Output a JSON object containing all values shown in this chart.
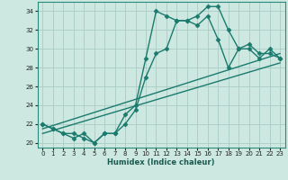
{
  "xlabel": "Humidex (Indice chaleur)",
  "background_color": "#cde8e0",
  "grid_color": "#aaccc4",
  "line_color": "#1a7a6e",
  "xlim": [
    -0.5,
    23.5
  ],
  "ylim": [
    19.5,
    35.0
  ],
  "yticks": [
    20,
    22,
    24,
    26,
    28,
    30,
    32,
    34
  ],
  "xticks": [
    0,
    1,
    2,
    3,
    4,
    5,
    6,
    7,
    8,
    9,
    10,
    11,
    12,
    13,
    14,
    15,
    16,
    17,
    18,
    19,
    20,
    21,
    22,
    23
  ],
  "line1_x": [
    0,
    1,
    2,
    3,
    4,
    5,
    6,
    7,
    8,
    9,
    10,
    11,
    12,
    13,
    14,
    15,
    16,
    17,
    18,
    19,
    20,
    21,
    22,
    23
  ],
  "line1_y": [
    22,
    21.5,
    21,
    21,
    20.5,
    20,
    21,
    21,
    22,
    23.5,
    27,
    29.5,
    30,
    33,
    33,
    32.5,
    33.5,
    31,
    28,
    30,
    30.5,
    29.5,
    29.5,
    29
  ],
  "line2_x": [
    0,
    1,
    2,
    3,
    4,
    5,
    6,
    7,
    8,
    9,
    10,
    11,
    12,
    13,
    14,
    15,
    16,
    17,
    18,
    19,
    20,
    21,
    22,
    23
  ],
  "line2_y": [
    22,
    21.5,
    21,
    20.5,
    21,
    20,
    21,
    21,
    23,
    24,
    29,
    34,
    33.5,
    33,
    33,
    33.5,
    34.5,
    34.5,
    32,
    30,
    30,
    29,
    30,
    29
  ],
  "line3_x": [
    0,
    23
  ],
  "line3_y": [
    21.5,
    29.5
  ],
  "line4_x": [
    0,
    23
  ],
  "line4_y": [
    21.0,
    28.5
  ],
  "marker": "D",
  "markersize": 2.5,
  "linewidth": 1.0
}
